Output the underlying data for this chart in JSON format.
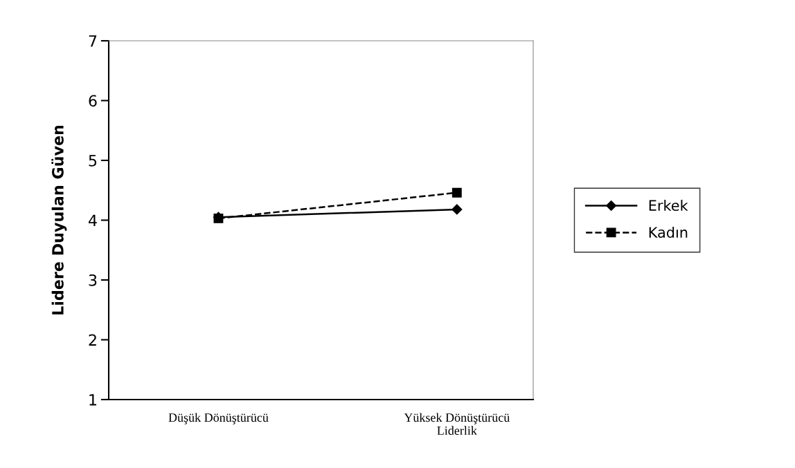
{
  "chart_data": {
    "type": "line",
    "ylabel": "Lidere Duyulan Güven",
    "categories": [
      "Düşük Dönüştürücü",
      "Yüksek Dönüştürücü\nLiderlik"
    ],
    "series": [
      {
        "name": "Erkek",
        "color": "#000000",
        "values": [
          4.05,
          4.18
        ],
        "marker": "diamond",
        "line_style": "solid"
      },
      {
        "name": "Kadın",
        "color": "#000000",
        "values": [
          4.03,
          4.46
        ],
        "marker": "square",
        "line_style": "dashed"
      }
    ],
    "ylim": [
      1,
      7
    ],
    "yticks": [
      1,
      2,
      3,
      4,
      5,
      6,
      7
    ],
    "grid": false,
    "legend": "right"
  }
}
